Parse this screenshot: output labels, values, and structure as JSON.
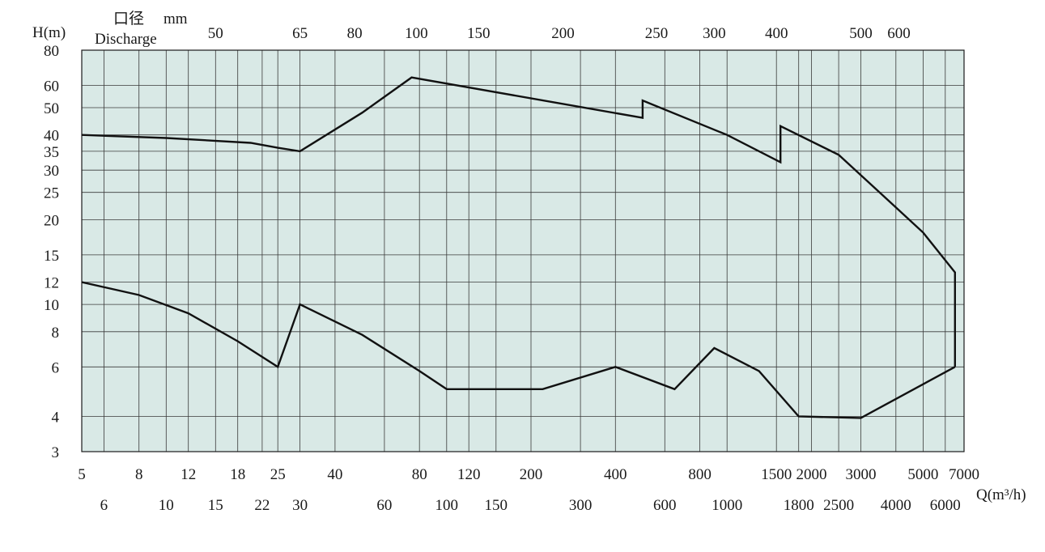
{
  "chart_data": {
    "type": "line",
    "y_axis_label": "H(m)",
    "x_axis_label": "Q(m³/h)",
    "discharge_label_cn": "口径",
    "discharge_unit": "mm",
    "discharge_label_en": "Discharge",
    "x_scale": "log",
    "y_scale": "log",
    "xlim": [
      5,
      7000
    ],
    "ylim": [
      3,
      80
    ],
    "grid": true,
    "discharge_ticks": [
      {
        "label": "50",
        "x": 15
      },
      {
        "label": "65",
        "x": 30
      },
      {
        "label": "80",
        "x": 47
      },
      {
        "label": "100",
        "x": 78
      },
      {
        "label": "150",
        "x": 130
      },
      {
        "label": "200",
        "x": 260
      },
      {
        "label": "250",
        "x": 560
      },
      {
        "label": "300",
        "x": 900
      },
      {
        "label": "400",
        "x": 1500
      },
      {
        "label": "500",
        "x": 3000
      },
      {
        "label": "600",
        "x": 4100
      }
    ],
    "y_ticks": [
      3,
      4,
      6,
      8,
      10,
      12,
      15,
      20,
      25,
      30,
      35,
      40,
      50,
      60,
      80
    ],
    "x_ticks_row1": [
      5,
      8,
      12,
      18,
      25,
      40,
      80,
      120,
      200,
      400,
      800,
      1500,
      2000,
      3000,
      5000,
      7000
    ],
    "x_ticks_row2": [
      6,
      10,
      15,
      22,
      30,
      60,
      100,
      150,
      300,
      600,
      1000,
      1800,
      2500,
      4000,
      6000
    ],
    "series": [
      {
        "points": [
          [
            5,
            40
          ],
          [
            10,
            39
          ],
          [
            20,
            37.5
          ],
          [
            25,
            36
          ],
          [
            30,
            35
          ],
          [
            50,
            48
          ],
          [
            75,
            64
          ],
          [
            500,
            46
          ],
          [
            500,
            53
          ],
          [
            1000,
            40
          ],
          [
            1550,
            32
          ],
          [
            1550,
            43
          ],
          [
            2500,
            34
          ],
          [
            3500,
            25
          ],
          [
            5000,
            18
          ],
          [
            6500,
            13
          ],
          [
            6500,
            6
          ]
        ]
      },
      {
        "points": [
          [
            5,
            12
          ],
          [
            8,
            10.8
          ],
          [
            12,
            9.3
          ],
          [
            18,
            7.4
          ],
          [
            25,
            6
          ],
          [
            30,
            10
          ],
          [
            50,
            7.8
          ],
          [
            80,
            5.8
          ],
          [
            100,
            5
          ],
          [
            220,
            5
          ],
          [
            400,
            6
          ],
          [
            650,
            5
          ],
          [
            900,
            7
          ],
          [
            1300,
            5.8
          ],
          [
            1800,
            4
          ],
          [
            3000,
            3.95
          ],
          [
            6500,
            6
          ]
        ]
      }
    ]
  }
}
